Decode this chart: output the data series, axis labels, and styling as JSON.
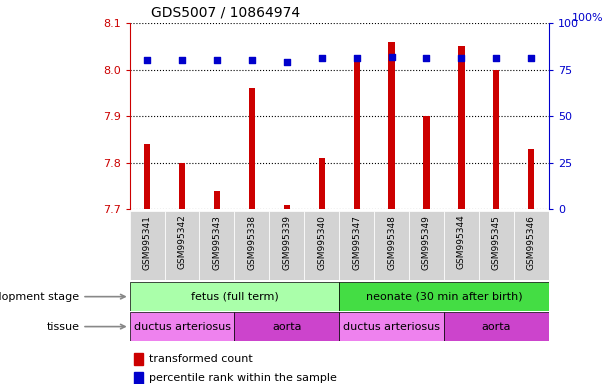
{
  "title": "GDS5007 / 10864974",
  "samples": [
    "GSM995341",
    "GSM995342",
    "GSM995343",
    "GSM995338",
    "GSM995339",
    "GSM995340",
    "GSM995347",
    "GSM995348",
    "GSM995349",
    "GSM995344",
    "GSM995345",
    "GSM995346"
  ],
  "transformed_count": [
    7.84,
    7.8,
    7.74,
    7.96,
    7.71,
    7.81,
    8.03,
    8.06,
    7.9,
    8.05,
    8.0,
    7.83
  ],
  "percentile_rank": [
    80,
    80,
    80,
    80,
    79,
    81,
    81,
    82,
    81,
    81,
    81,
    81
  ],
  "ylim_left": [
    7.7,
    8.1
  ],
  "ylim_right": [
    0,
    100
  ],
  "yticks_left": [
    7.7,
    7.8,
    7.9,
    8.0,
    8.1
  ],
  "yticks_right": [
    0,
    25,
    50,
    75,
    100
  ],
  "bar_color": "#cc0000",
  "dot_color": "#0000cc",
  "bar_bottom": 7.7,
  "dev_stage_groups": [
    {
      "label": "fetus (full term)",
      "start": 0,
      "end": 6,
      "color": "#aaffaa"
    },
    {
      "label": "neonate (30 min after birth)",
      "start": 6,
      "end": 12,
      "color": "#44dd44"
    }
  ],
  "tissue_groups": [
    {
      "label": "ductus arteriosus",
      "start": 0,
      "end": 3,
      "color": "#ee82ee"
    },
    {
      "label": "aorta",
      "start": 3,
      "end": 6,
      "color": "#dd44dd"
    },
    {
      "label": "ductus arteriosus",
      "start": 6,
      "end": 9,
      "color": "#ee82ee"
    },
    {
      "label": "aorta",
      "start": 9,
      "end": 12,
      "color": "#dd44dd"
    }
  ],
  "legend_bar_label": "transformed count",
  "legend_dot_label": "percentile rank within the sample",
  "dev_stage_label": "development stage",
  "tissue_label": "tissue",
  "tick_color_left": "#cc0000",
  "tick_color_right": "#0000cc",
  "right_axis_top_label": "100%"
}
